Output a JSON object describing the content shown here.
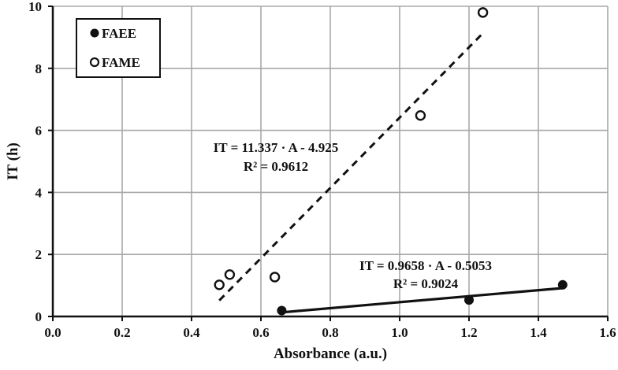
{
  "chart_data": {
    "type": "scatter",
    "title": "",
    "xlabel": "Absorbance (a.u.)",
    "ylabel": "IT (h)",
    "xlim": [
      0.0,
      1.6
    ],
    "ylim": [
      0,
      10
    ],
    "xticks": [
      "0.0",
      "0.2",
      "0.4",
      "0.6",
      "0.8",
      "1.0",
      "1.2",
      "1.4",
      "1.6"
    ],
    "yticks": [
      "0",
      "2",
      "4",
      "6",
      "8",
      "10"
    ],
    "grid": true,
    "legend_position": "upper-left",
    "series": [
      {
        "name": "FAEE",
        "marker": "filled-circle",
        "x": [
          0.66,
          1.2,
          1.47
        ],
        "y": [
          0.19,
          0.53,
          1.02
        ],
        "trendline": {
          "style": "solid",
          "slope": 0.9658,
          "intercept": -0.5053,
          "x_range": [
            0.66,
            1.47
          ],
          "equation": "IT = 0.9658 · A - 0.5053",
          "r2": "R² = 0.9024"
        }
      },
      {
        "name": "FAME",
        "marker": "open-circle",
        "x": [
          0.48,
          0.51,
          0.64,
          1.06,
          1.24
        ],
        "y": [
          1.02,
          1.35,
          1.27,
          6.48,
          9.8
        ],
        "trendline": {
          "style": "dashed",
          "slope": 11.337,
          "intercept": -4.925,
          "x_range": [
            0.48,
            1.24
          ],
          "equation": "IT = 11.337 · A - 4.925",
          "r2": "R² = 0.9612"
        }
      }
    ]
  },
  "legend": {
    "items": [
      {
        "label": "FAEE"
      },
      {
        "label": "FAME"
      }
    ]
  }
}
